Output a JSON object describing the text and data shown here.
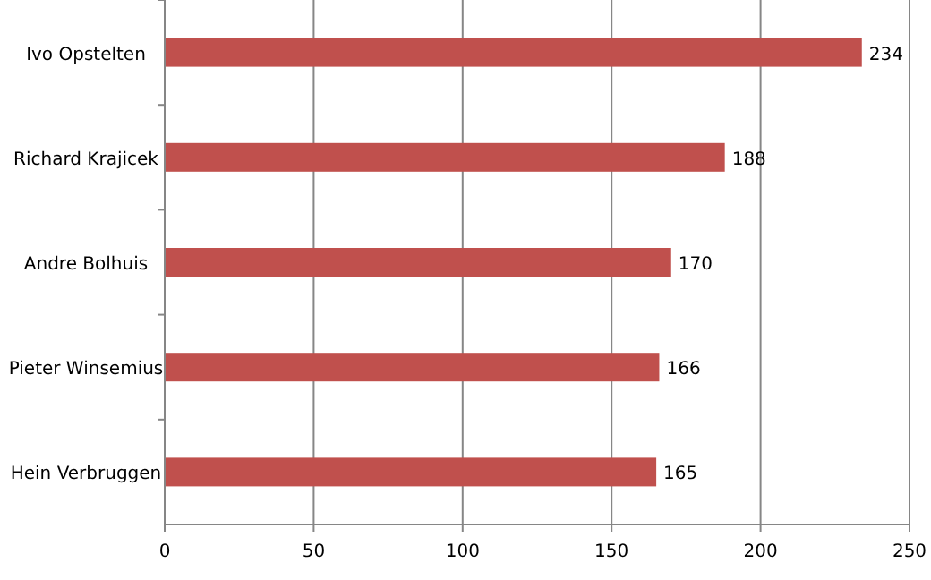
{
  "chart_data": {
    "type": "bar",
    "orientation": "horizontal",
    "categories": [
      "Ivo Opstelten",
      "Richard Krajicek",
      "Andre Bolhuis",
      "Pieter Winsemius",
      "Hein Verbruggen"
    ],
    "values": [
      234,
      188,
      170,
      166,
      165
    ],
    "color": "#c0504d",
    "xlim": [
      0,
      250
    ],
    "xticks": [
      0,
      50,
      100,
      150,
      200,
      250
    ],
    "grid": "x",
    "data_labels": true
  }
}
